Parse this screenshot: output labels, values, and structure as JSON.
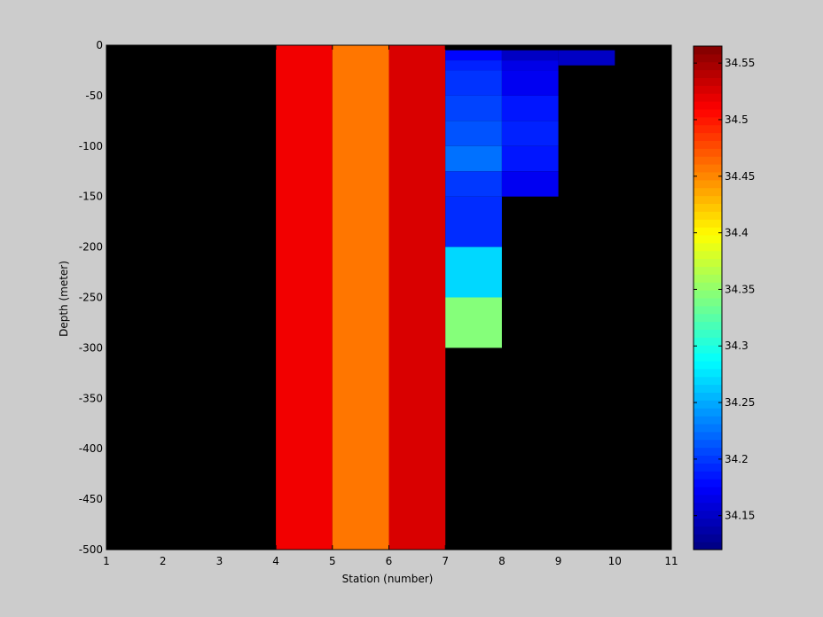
{
  "chart_data": {
    "type": "heatmap",
    "title": "",
    "xlabel": "Station (number)",
    "ylabel": "Depth (meter)",
    "xlim": [
      1,
      11
    ],
    "ylim": [
      -500,
      0
    ],
    "xticks": [
      "1",
      "2",
      "3",
      "4",
      "5",
      "6",
      "7",
      "8",
      "9",
      "10",
      "11"
    ],
    "yticks": [
      "0",
      "-50",
      "-100",
      "-150",
      "-200",
      "-250",
      "-300",
      "-350",
      "-400",
      "-450",
      "-500"
    ],
    "background_color": "#000000",
    "colormap": "jet",
    "colorbar": {
      "range": [
        34.12,
        34.565
      ],
      "ticks": [
        "34.15",
        "34.2",
        "34.25",
        "34.3",
        "34.35",
        "34.4",
        "34.45",
        "34.5",
        "34.55"
      ]
    },
    "cells": [
      {
        "station": [
          4,
          5
        ],
        "depth": [
          0,
          -500
        ],
        "value": 34.515
      },
      {
        "station": [
          5,
          6
        ],
        "depth": [
          0,
          -500
        ],
        "value": 34.458
      },
      {
        "station": [
          6,
          7
        ],
        "depth": [
          0,
          -500
        ],
        "value": 34.526
      },
      {
        "station": [
          7,
          8
        ],
        "depth": [
          -5,
          -15
        ],
        "value": 34.178
      },
      {
        "station": [
          7,
          8
        ],
        "depth": [
          -15,
          -25
        ],
        "value": 34.19
      },
      {
        "station": [
          7,
          8
        ],
        "depth": [
          -25,
          -50
        ],
        "value": 34.198
      },
      {
        "station": [
          7,
          8
        ],
        "depth": [
          -50,
          -75
        ],
        "value": 34.205
      },
      {
        "station": [
          7,
          8
        ],
        "depth": [
          -75,
          -100
        ],
        "value": 34.212
      },
      {
        "station": [
          7,
          8
        ],
        "depth": [
          -100,
          -125
        ],
        "value": 34.225
      },
      {
        "station": [
          7,
          8
        ],
        "depth": [
          -125,
          -150
        ],
        "value": 34.2
      },
      {
        "station": [
          7,
          8
        ],
        "depth": [
          -150,
          -200
        ],
        "value": 34.195
      },
      {
        "station": [
          7,
          8
        ],
        "depth": [
          -200,
          -250
        ],
        "value": 34.27
      },
      {
        "station": [
          7,
          8
        ],
        "depth": [
          -250,
          -300
        ],
        "value": 34.345
      },
      {
        "station": [
          8,
          9
        ],
        "depth": [
          -5,
          -15
        ],
        "value": 34.15
      },
      {
        "station": [
          8,
          9
        ],
        "depth": [
          -15,
          -25
        ],
        "value": 34.165
      },
      {
        "station": [
          8,
          9
        ],
        "depth": [
          -25,
          -50
        ],
        "value": 34.17
      },
      {
        "station": [
          8,
          9
        ],
        "depth": [
          -50,
          -75
        ],
        "value": 34.185
      },
      {
        "station": [
          8,
          9
        ],
        "depth": [
          -75,
          -100
        ],
        "value": 34.19
      },
      {
        "station": [
          8,
          9
        ],
        "depth": [
          -100,
          -125
        ],
        "value": 34.185
      },
      {
        "station": [
          8,
          9
        ],
        "depth": [
          -125,
          -150
        ],
        "value": 34.17
      },
      {
        "station": [
          9,
          10
        ],
        "depth": [
          -5,
          -20
        ],
        "value": 34.15
      }
    ]
  }
}
